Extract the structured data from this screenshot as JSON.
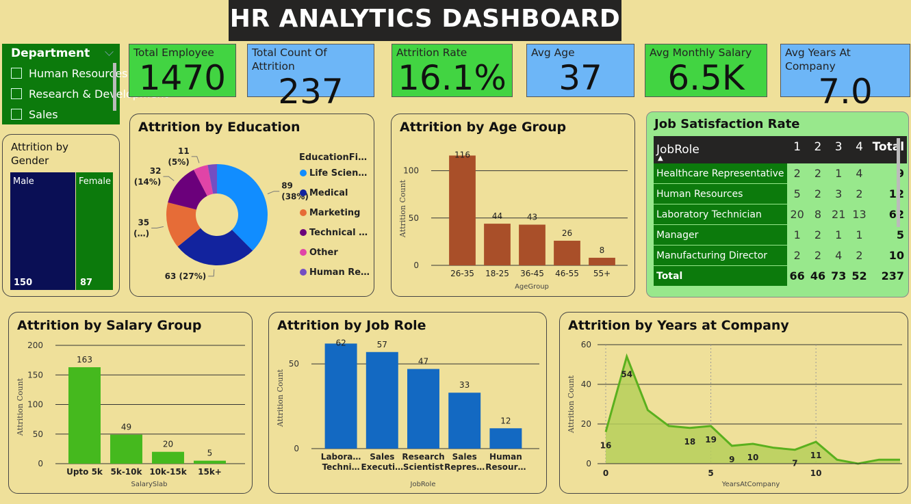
{
  "title": "HR ANALYTICS DASHBOARD",
  "slicer": {
    "header": "Department",
    "items": [
      "Human Resources",
      "Research & Development",
      "Sales"
    ]
  },
  "kpis": [
    {
      "label": "Total Employee",
      "value": "1470",
      "color": "#42D442"
    },
    {
      "label": "Total Count Of Attrition",
      "value": "237",
      "color": "#6DB6F7"
    },
    {
      "label": "Attrition Rate",
      "value": "16.1%",
      "color": "#42D442"
    },
    {
      "label": "Avg Age",
      "value": "37",
      "color": "#6DB6F7"
    },
    {
      "label": "Avg Monthly Salary",
      "value": "6.5K",
      "color": "#42D442"
    },
    {
      "label": "Avg Years At Company",
      "value": "7.0",
      "color": "#6DB6F7"
    }
  ],
  "gender_card": {
    "title": "Attrition by Gender",
    "male_label": "Male",
    "male_value": "150",
    "female_label": "Female",
    "female_value": "87"
  },
  "job_satisfaction": {
    "title": "Job Satisfaction Rate",
    "headers": [
      "JobRole",
      "1",
      "2",
      "3",
      "4",
      "Total"
    ],
    "rows": [
      {
        "role": "Healthcare Representative",
        "v": [
          "2",
          "2",
          "1",
          "4"
        ],
        "total": "9"
      },
      {
        "role": "Human Resources",
        "v": [
          "5",
          "2",
          "3",
          "2"
        ],
        "total": "12"
      },
      {
        "role": "Laboratory Technician",
        "v": [
          "20",
          "8",
          "21",
          "13"
        ],
        "total": "62"
      },
      {
        "role": "Manager",
        "v": [
          "1",
          "2",
          "1",
          "1"
        ],
        "total": "5"
      },
      {
        "role": "Manufacturing Director",
        "v": [
          "2",
          "2",
          "4",
          "2"
        ],
        "total": "10"
      }
    ],
    "total_row": {
      "role": "Total",
      "v": [
        "66",
        "46",
        "73",
        "52"
      ],
      "total": "237"
    }
  },
  "chart_data": [
    {
      "id": "education",
      "type": "pie",
      "title": "Attrition by Education",
      "legend_title": "EducationFi…",
      "legend_position": "right",
      "categories": [
        "Life Scien…",
        "Medical",
        "Marketing",
        "Technical …",
        "Other",
        "Human Re…"
      ],
      "values": [
        89,
        63,
        35,
        32,
        11,
        7
      ],
      "data_labels": [
        "89 (38%)",
        "63 (27%)",
        "35 (…)",
        "32 (14%)",
        "11 (5%)",
        ""
      ],
      "colors": [
        "#118DFF",
        "#12239E",
        "#E66C37",
        "#6B007B",
        "#E044A7",
        "#744EC2"
      ]
    },
    {
      "id": "age",
      "type": "bar",
      "title": "Attrition by Age Group",
      "xlabel": "AgeGroup",
      "ylabel": "Attrition Count",
      "categories": [
        "26-35",
        "18-25",
        "36-45",
        "46-55",
        "55+"
      ],
      "values": [
        116,
        44,
        43,
        26,
        8
      ],
      "yticks": [
        0,
        50,
        100
      ],
      "ylim": [
        0,
        125
      ],
      "color": "#A94F29",
      "grid": true
    },
    {
      "id": "salary",
      "type": "bar",
      "title": "Attrition by Salary Group",
      "xlabel": "SalarySlab",
      "ylabel": "Attrition Count",
      "categories": [
        "Upto 5k",
        "5k-10k",
        "10k-15k",
        "15k+"
      ],
      "values": [
        163,
        49,
        20,
        5
      ],
      "yticks": [
        0,
        50,
        100,
        150,
        200
      ],
      "ylim": [
        0,
        200
      ],
      "color": "#45B91E",
      "grid": true
    },
    {
      "id": "jobrole",
      "type": "bar",
      "title": "Attrition by Job Role",
      "xlabel": "JobRole",
      "ylabel": "Attrition Count",
      "categories": [
        [
          "Labora…",
          "Techni…"
        ],
        [
          "Sales",
          "Executi…"
        ],
        [
          "Research",
          "Scientist"
        ],
        [
          "Sales",
          "Repres…"
        ],
        [
          "Human",
          "Resour…"
        ]
      ],
      "values": [
        62,
        57,
        47,
        33,
        12
      ],
      "yticks": [
        0,
        50
      ],
      "ylim": [
        0,
        67
      ],
      "color": "#1369C2",
      "grid": true
    },
    {
      "id": "years",
      "type": "area",
      "title": "Attrition by Years at Company",
      "xlabel": "YearsAtCompany",
      "ylabel": "Attrition Count",
      "x": [
        0,
        1,
        2,
        3,
        4,
        5,
        6,
        7,
        8,
        9,
        10,
        11,
        12,
        13,
        14
      ],
      "values": [
        16,
        54,
        27,
        19,
        18,
        19,
        9,
        10,
        8,
        7,
        11,
        2,
        0,
        2,
        2
      ],
      "labeled_points": [
        0,
        1,
        4,
        5,
        6,
        7,
        9,
        10
      ],
      "xticks": [
        0,
        5,
        10
      ],
      "yticks": [
        0,
        20,
        40,
        60
      ],
      "ylim": [
        0,
        60
      ],
      "color": "#5AB01E",
      "fill": "#B6CF5A",
      "grid": true
    }
  ]
}
